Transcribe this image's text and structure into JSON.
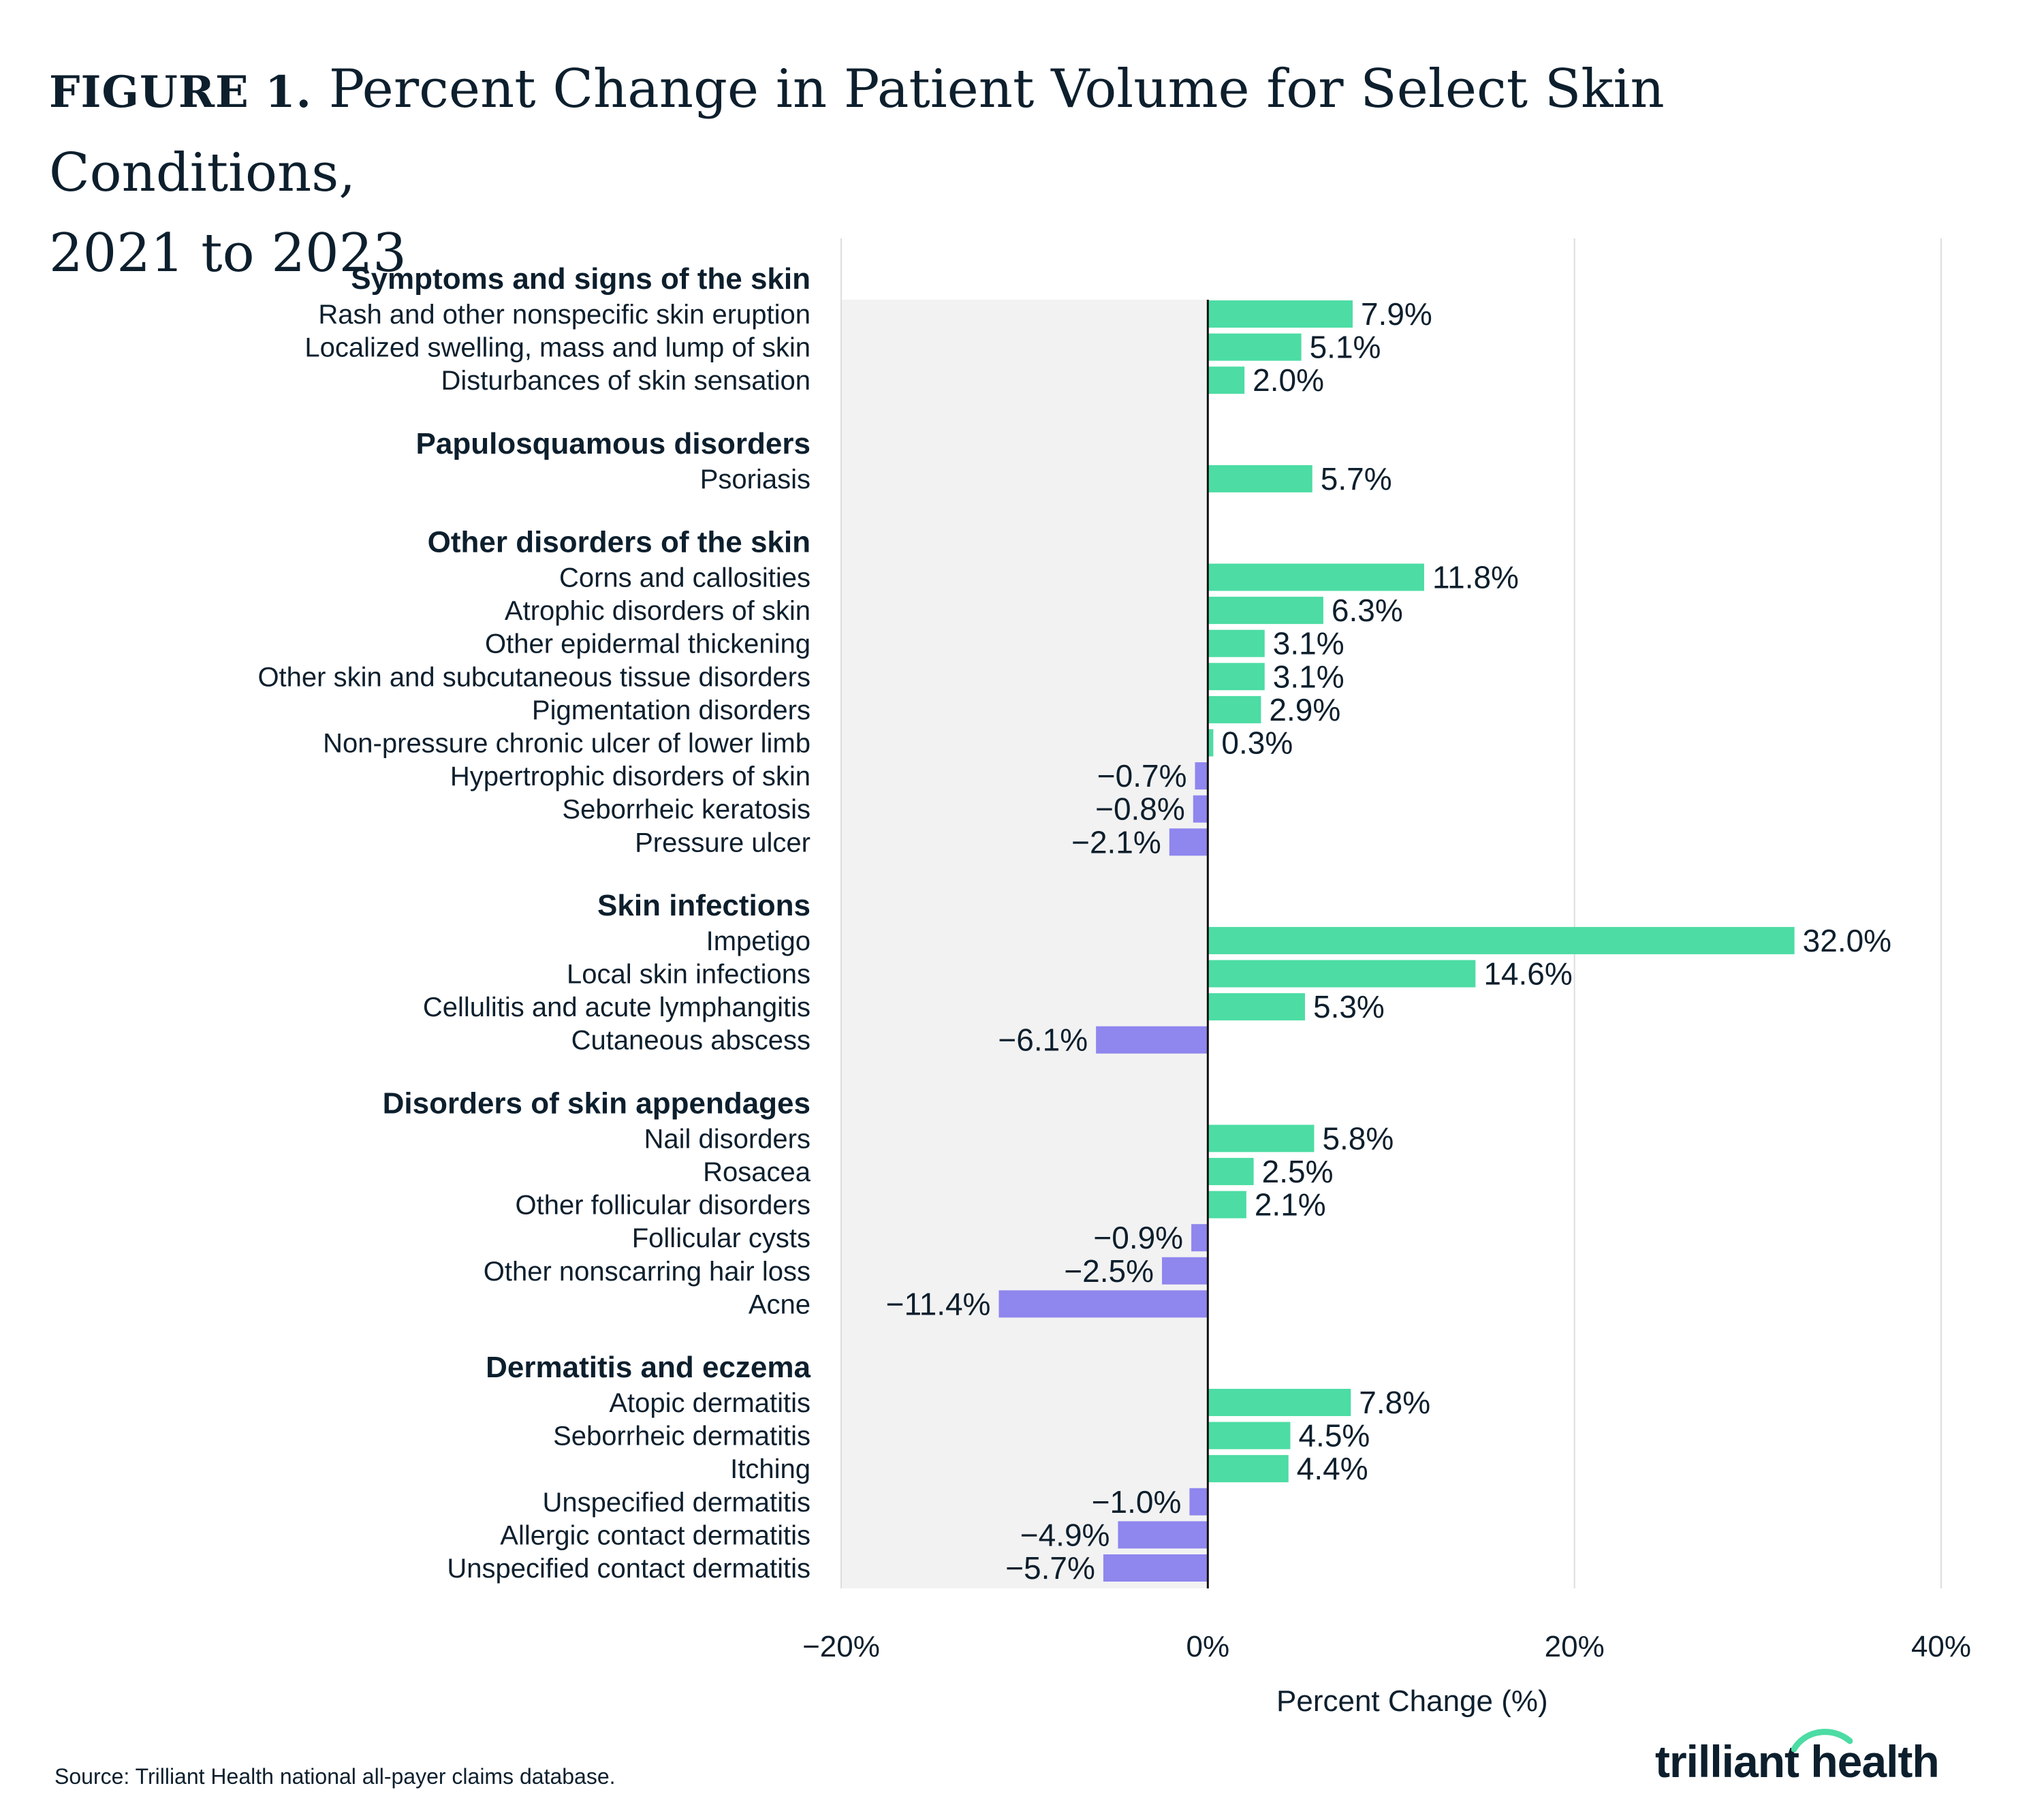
{
  "title": {
    "prefix": "FIGURE 1.",
    "line1": "Percent Change in Patient Volume for Select Skin Conditions,",
    "line2": "2021 to 2023"
  },
  "source": "Source: Trilliant Health national all-payer claims database.",
  "logo": {
    "text": "trilliant health",
    "accent_color": "#4cdca4"
  },
  "colors": {
    "positive": "#4cdca4",
    "negative": "#8f86ee",
    "shaded_region": "#f2f2f2",
    "gridline": "#dddddd",
    "zero_line": "#111111",
    "text": "#0d1f2d"
  },
  "chart_data": {
    "type": "bar",
    "orientation": "horizontal",
    "xlabel": "Percent Change (%)",
    "xlim": [
      -20,
      40
    ],
    "xticks": [
      -20,
      0,
      20,
      40
    ],
    "xtick_labels": [
      "−20%",
      "0%",
      "20%",
      "40%"
    ],
    "shaded_range": [
      -20,
      0
    ],
    "groups": [
      {
        "name": "Symptoms and signs of the skin",
        "items": [
          {
            "label": "Rash and other nonspecific skin eruption",
            "value": 7.9,
            "display": "7.9%"
          },
          {
            "label": "Localized swelling, mass and lump of skin",
            "value": 5.1,
            "display": "5.1%"
          },
          {
            "label": "Disturbances of skin sensation",
            "value": 2.0,
            "display": "2.0%"
          }
        ]
      },
      {
        "name": "Papulosquamous disorders",
        "items": [
          {
            "label": "Psoriasis",
            "value": 5.7,
            "display": "5.7%"
          }
        ]
      },
      {
        "name": "Other disorders of the skin",
        "items": [
          {
            "label": "Corns and callosities",
            "value": 11.8,
            "display": "11.8%"
          },
          {
            "label": "Atrophic disorders of skin",
            "value": 6.3,
            "display": "6.3%"
          },
          {
            "label": "Other epidermal thickening",
            "value": 3.1,
            "display": "3.1%"
          },
          {
            "label": "Other skin and subcutaneous tissue disorders",
            "value": 3.1,
            "display": "3.1%"
          },
          {
            "label": "Pigmentation disorders",
            "value": 2.9,
            "display": "2.9%"
          },
          {
            "label": "Non-pressure chronic ulcer of lower limb",
            "value": 0.3,
            "display": "0.3%"
          },
          {
            "label": "Hypertrophic disorders of skin",
            "value": -0.7,
            "display": "−0.7%"
          },
          {
            "label": "Seborrheic keratosis",
            "value": -0.8,
            "display": "−0.8%"
          },
          {
            "label": "Pressure ulcer",
            "value": -2.1,
            "display": "−2.1%"
          }
        ]
      },
      {
        "name": "Skin infections",
        "items": [
          {
            "label": "Impetigo",
            "value": 32.0,
            "display": "32.0%"
          },
          {
            "label": "Local skin infections",
            "value": 14.6,
            "display": "14.6%"
          },
          {
            "label": "Cellulitis and acute lymphangitis",
            "value": 5.3,
            "display": "5.3%"
          },
          {
            "label": "Cutaneous abscess",
            "value": -6.1,
            "display": "−6.1%"
          }
        ]
      },
      {
        "name": "Disorders of skin appendages",
        "items": [
          {
            "label": "Nail disorders",
            "value": 5.8,
            "display": "5.8%"
          },
          {
            "label": "Rosacea",
            "value": 2.5,
            "display": "2.5%"
          },
          {
            "label": "Other follicular disorders",
            "value": 2.1,
            "display": "2.1%"
          },
          {
            "label": "Follicular cysts",
            "value": -0.9,
            "display": "−0.9%"
          },
          {
            "label": "Other nonscarring hair loss",
            "value": -2.5,
            "display": "−2.5%"
          },
          {
            "label": "Acne",
            "value": -11.4,
            "display": "−11.4%"
          }
        ]
      },
      {
        "name": "Dermatitis and eczema",
        "items": [
          {
            "label": "Atopic dermatitis",
            "value": 7.8,
            "display": "7.8%"
          },
          {
            "label": "Seborrheic dermatitis",
            "value": 4.5,
            "display": "4.5%"
          },
          {
            "label": "Itching",
            "value": 4.4,
            "display": "4.4%"
          },
          {
            "label": "Unspecified dermatitis",
            "value": -1.0,
            "display": "−1.0%"
          },
          {
            "label": "Allergic contact dermatitis",
            "value": -4.9,
            "display": "−4.9%"
          },
          {
            "label": "Unspecified contact dermatitis",
            "value": -5.7,
            "display": "−5.7%"
          }
        ]
      }
    ]
  }
}
